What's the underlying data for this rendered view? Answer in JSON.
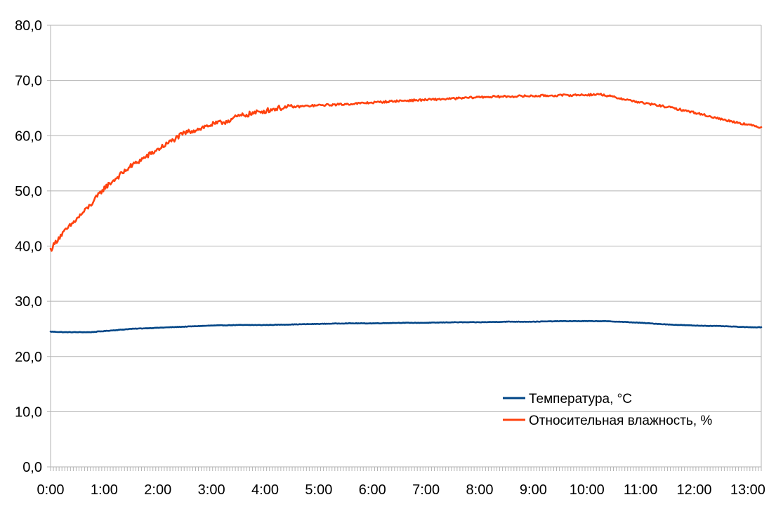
{
  "chart_data": {
    "type": "line",
    "title": "",
    "xlabel": "",
    "ylabel": "",
    "xlim": [
      0,
      13.25
    ],
    "ylim": [
      0,
      80
    ],
    "x_ticks": [
      {
        "value": 0,
        "label": "0:00"
      },
      {
        "value": 1,
        "label": "1:00"
      },
      {
        "value": 2,
        "label": "2:00"
      },
      {
        "value": 3,
        "label": "3:00"
      },
      {
        "value": 4,
        "label": "4:00"
      },
      {
        "value": 5,
        "label": "5:00"
      },
      {
        "value": 6,
        "label": "6:00"
      },
      {
        "value": 7,
        "label": "7:00"
      },
      {
        "value": 8,
        "label": "8:00"
      },
      {
        "value": 9,
        "label": "9:00"
      },
      {
        "value": 10,
        "label": "10:00"
      },
      {
        "value": 11,
        "label": "11:00"
      },
      {
        "value": 12,
        "label": "12:00"
      },
      {
        "value": 13,
        "label": "13:00"
      }
    ],
    "y_ticks": [
      {
        "value": 0,
        "label": "0,0"
      },
      {
        "value": 10,
        "label": "10,0"
      },
      {
        "value": 20,
        "label": "20,0"
      },
      {
        "value": 30,
        "label": "30,0"
      },
      {
        "value": 40,
        "label": "40,0"
      },
      {
        "value": 50,
        "label": "50,0"
      },
      {
        "value": 60,
        "label": "60,0"
      },
      {
        "value": 70,
        "label": "70,0"
      },
      {
        "value": 80,
        "label": "80,0"
      }
    ],
    "grid": {
      "horizontal": true,
      "vertical": false
    },
    "legend": {
      "placement": "bottom-right"
    },
    "series": [
      {
        "name": "Температура, °C",
        "color": "#004586",
        "x": [
          0,
          0.25,
          0.5,
          0.75,
          1,
          1.25,
          1.5,
          1.75,
          2,
          2.5,
          3,
          3.5,
          4,
          4.5,
          5,
          5.5,
          6,
          6.5,
          7,
          7.5,
          8,
          8.5,
          9,
          9.5,
          10,
          10.3,
          10.6,
          11,
          11.5,
          12,
          12.5,
          13,
          13.25
        ],
        "y": [
          24.5,
          24.4,
          24.4,
          24.4,
          24.6,
          24.8,
          25.0,
          25.1,
          25.2,
          25.4,
          25.6,
          25.7,
          25.7,
          25.8,
          25.9,
          26.0,
          26.0,
          26.1,
          26.1,
          26.2,
          26.2,
          26.3,
          26.3,
          26.4,
          26.4,
          26.4,
          26.3,
          26.1,
          25.8,
          25.6,
          25.5,
          25.3,
          25.3
        ]
      },
      {
        "name": "Относительная влажность, %",
        "color": "#ff420e",
        "x": [
          0,
          0.15,
          0.3,
          0.5,
          0.75,
          1,
          1.25,
          1.5,
          1.75,
          2,
          2.25,
          2.5,
          2.75,
          3,
          3.25,
          3.5,
          3.75,
          4,
          4.25,
          4.5,
          5,
          5.5,
          6,
          6.5,
          7,
          7.5,
          8,
          8.5,
          9,
          9.5,
          10,
          10.25,
          10.5,
          11,
          11.5,
          12,
          12.5,
          13,
          13.25
        ],
        "y": [
          39.3,
          41.5,
          43.0,
          45.0,
          47.5,
          50.5,
          52.5,
          54.5,
          56.0,
          57.5,
          59.0,
          60.5,
          61.2,
          62.0,
          62.5,
          63.5,
          64.0,
          64.5,
          65.0,
          65.2,
          65.5,
          65.7,
          66.0,
          66.3,
          66.5,
          66.7,
          67.0,
          67.1,
          67.2,
          67.3,
          67.4,
          67.5,
          67.0,
          66.0,
          65.2,
          64.2,
          63.0,
          62.0,
          61.5
        ]
      }
    ]
  }
}
